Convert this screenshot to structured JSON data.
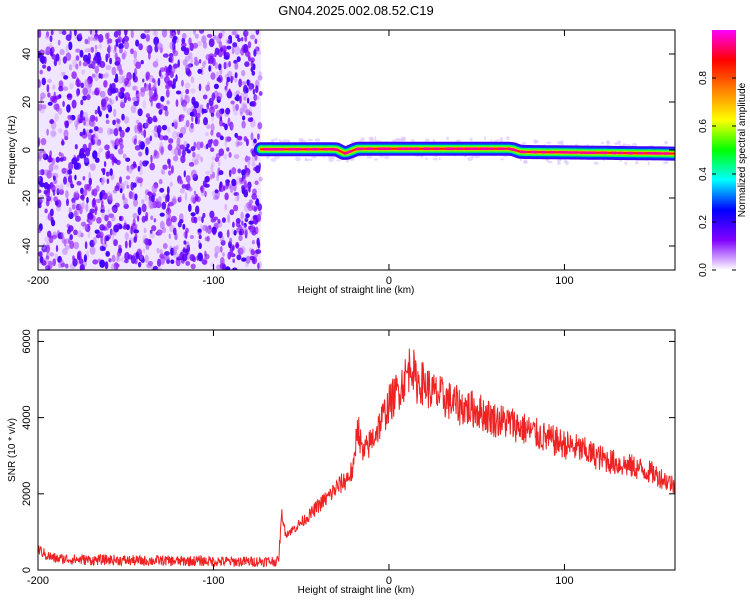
{
  "title": "GN04.2025.002.08.52.C19",
  "chart_data": [
    {
      "type": "heatmap",
      "title": "GN04.2025.002.08.52.C19",
      "xlabel": "Height of straight line (km)",
      "ylabel": "Frequency (Hz)",
      "xlim": [
        -200,
        163
      ],
      "ylim": [
        -50,
        50
      ],
      "x_ticks": [
        -200,
        -100,
        0,
        100
      ],
      "x_tick_labels": [
        "-200",
        "-100",
        "0",
        "100"
      ],
      "y_ticks": [
        -40,
        -20,
        0,
        20,
        40
      ],
      "y_tick_labels": [
        "-40",
        "-20",
        "0",
        "20",
        "40"
      ],
      "grid": false,
      "colorbar": {
        "label": "Normalized spectral amplitude",
        "range": [
          0,
          1
        ],
        "ticks": [
          0.0,
          0.2,
          0.4,
          0.6,
          0.8
        ],
        "tick_labels": [
          "0.0",
          "0.2",
          "0.4",
          "0.6",
          "0.8"
        ],
        "colormap": [
          "#ffffff",
          "#8000ff",
          "#0000ff",
          "#00ffff",
          "#00ff00",
          "#ffff00",
          "#ff8000",
          "#ff0000",
          "#ff00ff"
        ]
      },
      "noise_region": {
        "x_range": [
          -200,
          -73
        ],
        "f_range": [
          -50,
          50
        ],
        "level_range": [
          0.05,
          0.15
        ]
      },
      "signal_trace": {
        "x_start": -73,
        "x_end": 163,
        "points": [
          {
            "x": -73,
            "f": 0.3
          },
          {
            "x": -30,
            "f": 0.3
          },
          {
            "x": -25,
            "f": -1.5
          },
          {
            "x": -18,
            "f": 0.5
          },
          {
            "x": 70,
            "f": 0.5
          },
          {
            "x": 75,
            "f": -0.8
          },
          {
            "x": 163,
            "f": -1.5
          }
        ],
        "peak_level": 0.95
      }
    },
    {
      "type": "line",
      "xlabel": "Height of straight line (km)",
      "ylabel": "SNR (10 * v/v)",
      "xlim": [
        -200,
        163
      ],
      "ylim": [
        0,
        6300
      ],
      "x_ticks": [
        -200,
        -100,
        0,
        100
      ],
      "x_tick_labels": [
        "-200",
        "-100",
        "0",
        "100"
      ],
      "y_ticks": [
        0,
        2000,
        4000,
        6000
      ],
      "y_tick_labels": [
        "0",
        "2000",
        "4000",
        "6000"
      ],
      "grid": false,
      "series": [
        {
          "color": "#ee2222",
          "x": [
            -200,
            -195,
            -190,
            -180,
            -170,
            -160,
            -150,
            -140,
            -130,
            -120,
            -110,
            -100,
            -90,
            -80,
            -70,
            -63,
            -61,
            -59,
            -55,
            -50,
            -45,
            -40,
            -35,
            -30,
            -25,
            -20,
            -18,
            -15,
            -10,
            -5,
            0,
            5,
            10,
            13,
            15,
            20,
            25,
            30,
            40,
            50,
            60,
            70,
            80,
            90,
            100,
            110,
            120,
            130,
            140,
            150,
            160,
            163
          ],
          "y": [
            550,
            380,
            300,
            280,
            260,
            270,
            250,
            240,
            250,
            230,
            240,
            230,
            220,
            220,
            230,
            230,
            1500,
            950,
            1050,
            1250,
            1450,
            1700,
            1900,
            2150,
            2350,
            2650,
            3900,
            3000,
            3400,
            3850,
            4350,
            4700,
            5100,
            5500,
            4950,
            4900,
            4650,
            4550,
            4300,
            4200,
            3950,
            3850,
            3650,
            3450,
            3300,
            3150,
            2950,
            2800,
            2700,
            2550,
            2300,
            2200
          ]
        }
      ]
    }
  ]
}
